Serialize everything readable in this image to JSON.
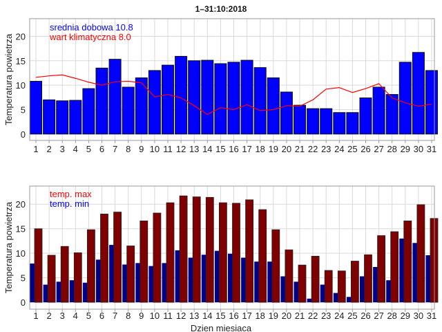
{
  "chart_data": [
    {
      "type": "bar",
      "title": "1–31:10:2018",
      "xlabel": "",
      "ylabel": "Temperatura powietrza",
      "ylim": [
        -1.3,
        23.6
      ],
      "yticks": [
        0,
        5,
        10,
        15,
        20
      ],
      "grid": true,
      "legend_placement": "top-left",
      "categories": [
        1,
        2,
        3,
        4,
        5,
        6,
        7,
        8,
        9,
        10,
        11,
        12,
        13,
        14,
        15,
        16,
        17,
        18,
        19,
        20,
        21,
        22,
        23,
        24,
        25,
        26,
        27,
        28,
        29,
        30,
        31
      ],
      "series": [
        {
          "name": "srednia dobowa 10.8",
          "kind": "bar",
          "color": "#0000ff",
          "values": [
            10.8,
            7.0,
            6.8,
            6.9,
            9.3,
            13.5,
            15.3,
            9.6,
            11.5,
            13.0,
            14.1,
            15.9,
            15.0,
            15.1,
            14.4,
            14.7,
            15.1,
            13.6,
            11.5,
            8.6,
            5.9,
            5.2,
            5.2,
            4.4,
            4.4,
            7.4,
            9.6,
            8.1,
            14.7,
            16.7,
            13.0
          ]
        },
        {
          "name": "wart klimatyczna 8.0",
          "kind": "line",
          "color": "#ff0000",
          "values": [
            11.6,
            11.9,
            12.1,
            11.4,
            10.6,
            10.0,
            10.7,
            10.8,
            10.5,
            7.6,
            8.1,
            7.4,
            5.8,
            4.0,
            5.4,
            5.0,
            6.0,
            4.8,
            5.0,
            5.8,
            5.7,
            7.0,
            9.2,
            9.5,
            8.5,
            9.3,
            10.3,
            7.4,
            6.4,
            5.7,
            6.1
          ]
        }
      ]
    },
    {
      "type": "bar",
      "title": "",
      "xlabel": "Dzien miesiaca",
      "ylabel": "Temperatura powietrza",
      "ylim": [
        -1.4,
        23.7
      ],
      "yticks": [
        0,
        5,
        10,
        15,
        20
      ],
      "grid": true,
      "legend_placement": "top-left",
      "categories": [
        1,
        2,
        3,
        4,
        5,
        6,
        7,
        8,
        9,
        10,
        11,
        12,
        13,
        14,
        15,
        16,
        17,
        18,
        19,
        20,
        21,
        22,
        23,
        24,
        25,
        26,
        27,
        28,
        29,
        30,
        31
      ],
      "series": [
        {
          "name": "temp. max",
          "kind": "bar",
          "color": "#7f0000",
          "legend_color": "#ff0000",
          "values": [
            15.0,
            9.6,
            11.4,
            10.1,
            14.8,
            18.0,
            18.4,
            11.5,
            16.6,
            18.2,
            20.3,
            21.7,
            21.5,
            21.4,
            20.3,
            20.2,
            20.9,
            18.9,
            14.8,
            10.7,
            7.6,
            9.4,
            6.5,
            6.4,
            8.4,
            9.7,
            13.6,
            14.4,
            16.6,
            19.9,
            17.1
          ]
        },
        {
          "name": "temp. min",
          "kind": "bar",
          "color": "#00008b",
          "legend_color": "#0000ff",
          "values": [
            7.9,
            3.6,
            4.2,
            4.5,
            4.0,
            8.7,
            11.7,
            7.7,
            8.0,
            7.4,
            8.0,
            10.6,
            9.1,
            9.7,
            10.5,
            9.9,
            9.1,
            8.3,
            8.3,
            5.3,
            4.2,
            0.75,
            3.6,
            1.9,
            1.1,
            5.3,
            7.2,
            4.5,
            13.0,
            12.1,
            9.6
          ]
        }
      ]
    }
  ]
}
